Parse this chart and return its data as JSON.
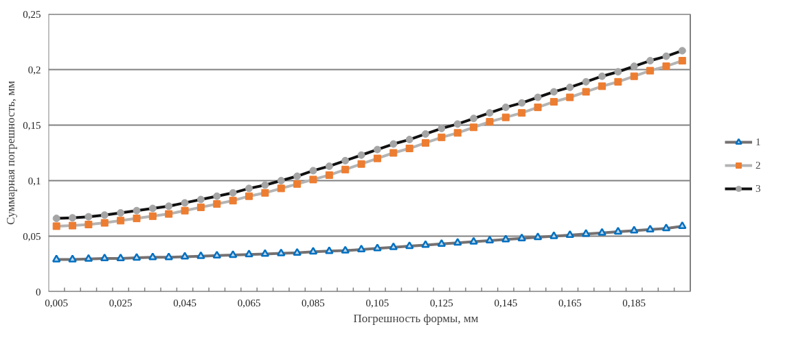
{
  "chart_data": {
    "type": "line",
    "xlabel": "Погрешность формы, мм",
    "ylabel": "Суммарная погрешность, мм",
    "categories": [
      "0,005",
      null,
      null,
      null,
      "0,025",
      null,
      null,
      null,
      "0,045",
      null,
      null,
      null,
      "0,065",
      null,
      null,
      null,
      "0,085",
      null,
      null,
      null,
      "0,105",
      null,
      null,
      null,
      "0,125",
      null,
      null,
      null,
      "0,145",
      null,
      null,
      null,
      "0,165",
      null,
      null,
      null,
      "0,185",
      null,
      null,
      null
    ],
    "series": [
      {
        "name": "1",
        "color": "#0070c0",
        "marker": "triangle",
        "values": [
          0.029,
          0.029,
          0.0295,
          0.03,
          0.03,
          0.0305,
          0.031,
          0.031,
          0.0315,
          0.032,
          0.0325,
          0.033,
          0.0335,
          0.034,
          0.0345,
          0.035,
          0.036,
          0.0365,
          0.037,
          0.038,
          0.039,
          0.04,
          0.041,
          0.042,
          0.043,
          0.044,
          0.045,
          0.046,
          0.047,
          0.048,
          0.049,
          0.05,
          0.051,
          0.052,
          0.053,
          0.054,
          0.055,
          0.056,
          0.057,
          0.059
        ]
      },
      {
        "name": "2",
        "color": "#ed7d31",
        "marker": "square",
        "values": [
          0.059,
          0.0595,
          0.0605,
          0.062,
          0.064,
          0.066,
          0.068,
          0.07,
          0.073,
          0.076,
          0.079,
          0.082,
          0.086,
          0.089,
          0.093,
          0.097,
          0.101,
          0.105,
          0.11,
          0.115,
          0.12,
          0.125,
          0.129,
          0.134,
          0.139,
          0.143,
          0.148,
          0.153,
          0.157,
          0.161,
          0.166,
          0.171,
          0.175,
          0.18,
          0.185,
          0.189,
          0.194,
          0.199,
          0.203,
          0.208
        ]
      },
      {
        "name": "3",
        "color": "#a5a5a5",
        "marker": "circle",
        "values": [
          0.066,
          0.0665,
          0.0675,
          0.069,
          0.071,
          0.073,
          0.075,
          0.077,
          0.08,
          0.083,
          0.086,
          0.089,
          0.093,
          0.096,
          0.1,
          0.104,
          0.109,
          0.113,
          0.118,
          0.123,
          0.128,
          0.133,
          0.137,
          0.142,
          0.147,
          0.151,
          0.156,
          0.161,
          0.166,
          0.17,
          0.175,
          0.18,
          0.184,
          0.189,
          0.194,
          0.198,
          0.203,
          0.208,
          0.212,
          0.217
        ]
      }
    ],
    "ylim": [
      0,
      0.25
    ],
    "yticks": [
      0,
      {
        "value": 0.05,
        "label": "0,05"
      },
      {
        "value": 0.1,
        "label": "0,1"
      },
      {
        "value": 0.15,
        "label": "0,15"
      },
      {
        "value": 0.2,
        "label": "0,2"
      },
      {
        "value": 0.25,
        "label": "0,25"
      }
    ],
    "grid": "y",
    "legend": "right",
    "line_style": "solid"
  }
}
